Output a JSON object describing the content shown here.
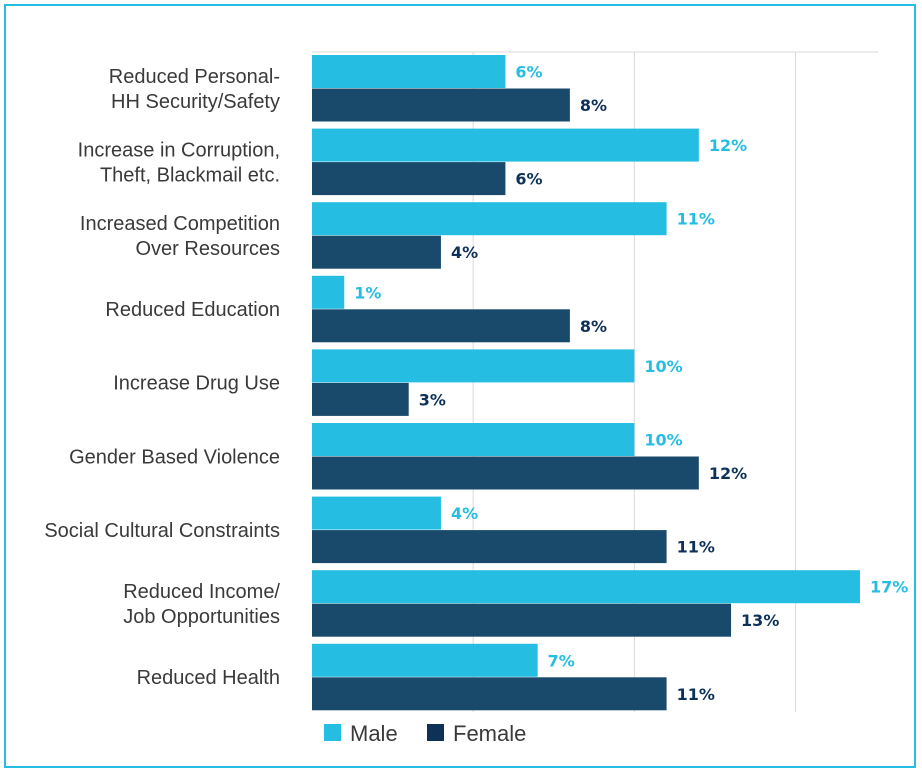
{
  "chart_data": {
    "type": "bar",
    "orientation": "horizontal",
    "categories": [
      [
        "Reduced Personal-",
        "HH Security/Safety"
      ],
      [
        "Increase in Corruption,",
        "Theft, Blackmail etc."
      ],
      [
        "Increased Competition",
        "Over Resources"
      ],
      [
        "Reduced Education"
      ],
      [
        "Increase Drug Use"
      ],
      [
        "Gender Based Violence"
      ],
      [
        "Social Cultural Constraints"
      ],
      [
        "Reduced Income/",
        "Job Opportunities"
      ],
      [
        "Reduced Health"
      ]
    ],
    "series": [
      {
        "name": "Male",
        "color": "#26bde2",
        "label_color": "#26bde2",
        "values": [
          6,
          12,
          11,
          1,
          10,
          10,
          4,
          17,
          7
        ],
        "labels": [
          "6%",
          "12%",
          "11%",
          "1%",
          "10%",
          "10%",
          "4%",
          "17%",
          "7%"
        ]
      },
      {
        "name": "Female",
        "color": "#1a4a6b",
        "label_color": "#0e3158",
        "values": [
          8,
          6,
          4,
          8,
          3,
          12,
          11,
          13,
          11
        ],
        "labels": [
          "8%",
          "6%",
          "4%",
          "8%",
          "3%",
          "12%",
          "11%",
          "13%",
          "11%"
        ]
      }
    ],
    "xlim": [
      0,
      17.5
    ],
    "gridlines_at": [
      5,
      10,
      15
    ],
    "grid": true,
    "legend_position": "bottom",
    "legend_colors": {
      "Male": "#26bde2",
      "Female": "#0e3158"
    },
    "frame_color": "#25bde2",
    "grid_color": "#d9d9d9"
  }
}
